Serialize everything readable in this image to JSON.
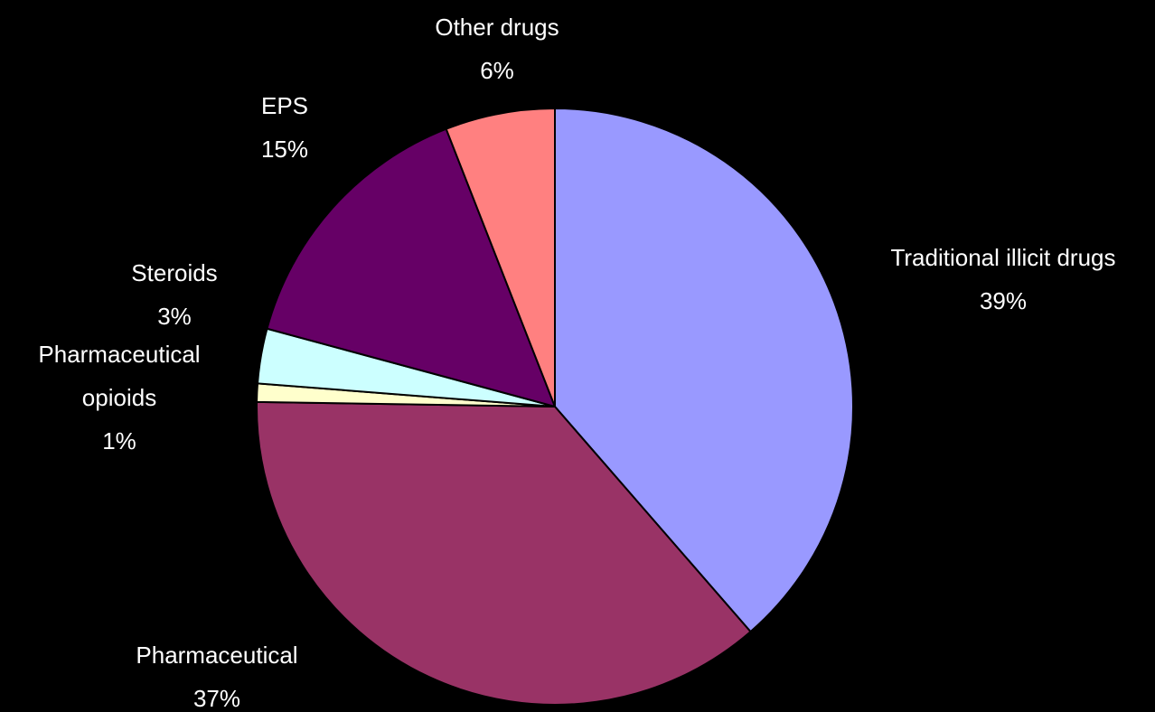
{
  "chart_data": {
    "type": "pie",
    "categories": [
      "Traditional illicit drugs",
      "Pharmaceutical",
      "Pharmaceutical opioids",
      "Steroids",
      "EPS",
      "Other drugs"
    ],
    "values": [
      39,
      37,
      1,
      3,
      15,
      6
    ],
    "value_labels": [
      "39%",
      "37%",
      "1%",
      "3%",
      "15%",
      "6%"
    ],
    "colors": [
      "#9999ff",
      "#993366",
      "#ffffcc",
      "#ccffff",
      "#660066",
      "#ff8080"
    ]
  }
}
